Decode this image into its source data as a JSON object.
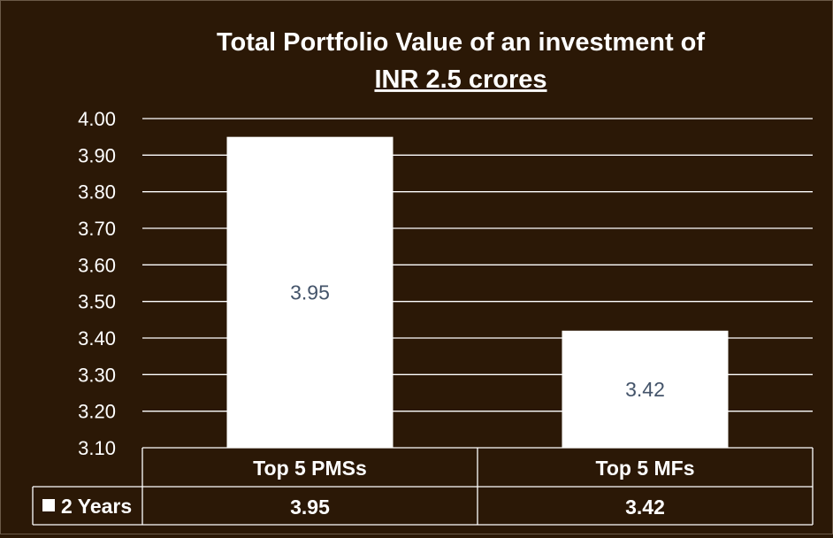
{
  "chart_data": {
    "type": "bar",
    "title_line1": "Total Portfolio Value of an investment of",
    "title_line2": "INR 2.5 crores",
    "categories": [
      "Top 5 PMSs",
      "Top 5 MFs"
    ],
    "series": [
      {
        "name": "2 Years",
        "values": [
          3.95,
          3.42
        ],
        "labels": [
          "3.95",
          "3.42"
        ]
      }
    ],
    "yticks": [
      "3.10",
      "3.20",
      "3.30",
      "3.40",
      "3.50",
      "3.60",
      "3.70",
      "3.80",
      "3.90",
      "4.00"
    ],
    "ylim": [
      3.1,
      4.0
    ],
    "grid": true,
    "legend_placement": "data-table",
    "colors": {
      "background": "#2b1806",
      "bar": "#ffffff",
      "text": "#ffffff",
      "grid": "#ffffff",
      "bar_label": "#44546a"
    }
  }
}
